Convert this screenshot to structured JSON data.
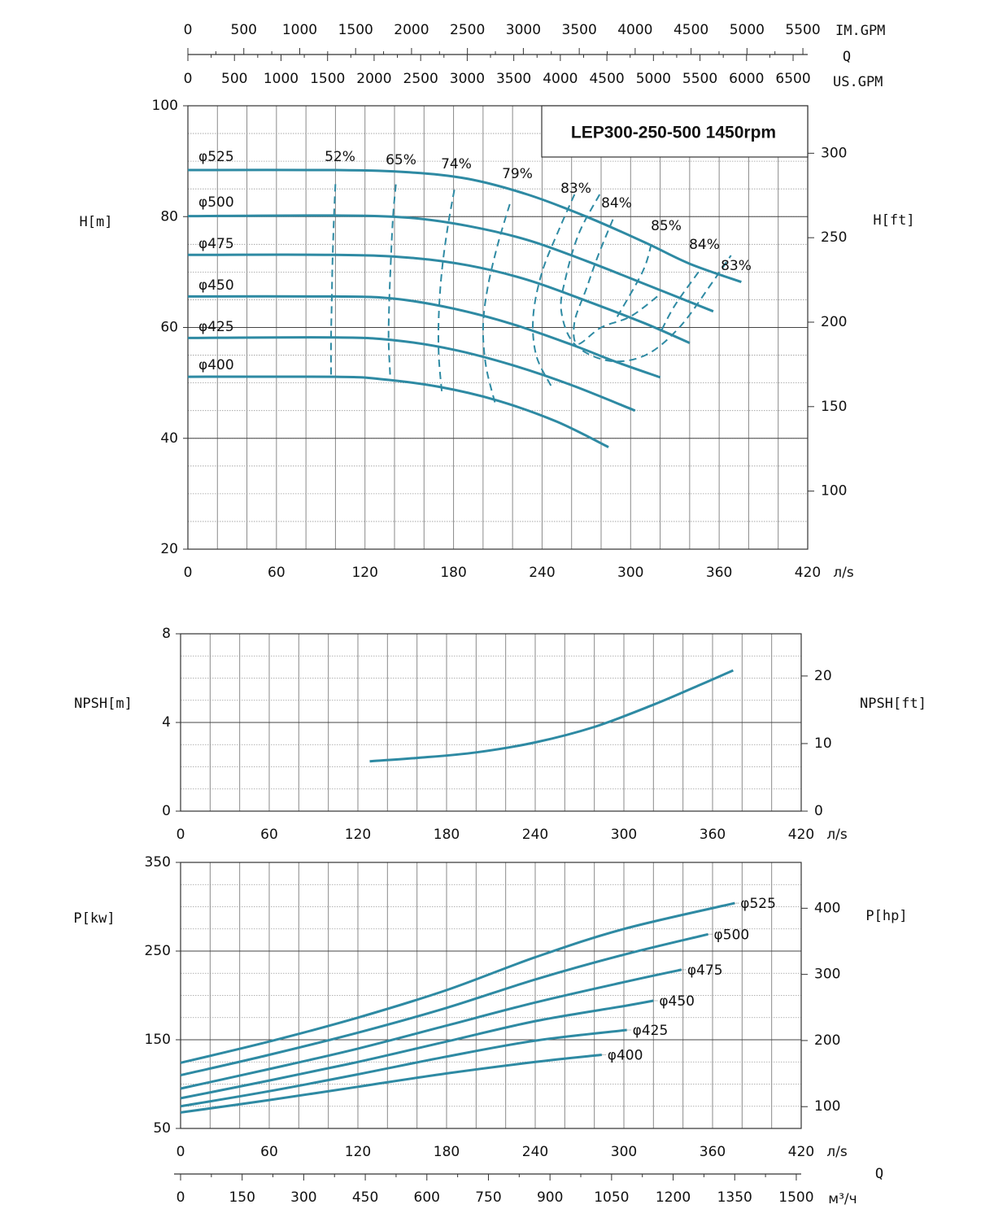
{
  "chart_data": [
    {
      "id": "head",
      "type": "line",
      "title": "LEP300-250-500 1450rpm",
      "xlabel_unit": "л/s",
      "ylabel": "H[m]",
      "ylabel_right": "H[ft]",
      "xlim": [
        0,
        420
      ],
      "ylim": [
        20,
        100
      ],
      "x_ticks": [
        0,
        60,
        120,
        180,
        240,
        300,
        360,
        420
      ],
      "y_ticks": [
        20,
        40,
        60,
        80,
        100
      ],
      "y_right_ticks": [
        100,
        150,
        200,
        250,
        300
      ],
      "y_right_factor": 3.281,
      "grid": true,
      "top_axis_imgpm": {
        "label": "IM.GPM",
        "ticks": [
          0,
          500,
          1000,
          1500,
          2000,
          2500,
          3000,
          3500,
          4000,
          4500,
          5000,
          5500
        ],
        "factor": 13.198
      },
      "top_axis_q": "Q",
      "top_axis_usgpm": {
        "label": "US.GPM",
        "ticks": [
          0,
          500,
          1000,
          1500,
          2000,
          2500,
          3000,
          3500,
          4000,
          4500,
          5000,
          5500,
          6000,
          6500
        ],
        "factor": 15.85
      },
      "series": [
        {
          "name": "φ525",
          "points": [
            [
              0,
              88.4
            ],
            [
              100,
              88.4
            ],
            [
              150,
              88
            ],
            [
              190,
              86.8
            ],
            [
              230,
              84
            ],
            [
              270,
              80
            ],
            [
              310,
              75.3
            ],
            [
              340,
              71.5
            ],
            [
              375,
              68.2
            ]
          ]
        },
        {
          "name": "φ500",
          "points": [
            [
              0,
              80.1
            ],
            [
              100,
              80.2
            ],
            [
              150,
              79.8
            ],
            [
              190,
              78.3
            ],
            [
              230,
              75.8
            ],
            [
              270,
              72
            ],
            [
              310,
              67.8
            ],
            [
              356,
              62.9
            ]
          ]
        },
        {
          "name": "φ475",
          "points": [
            [
              0,
              73.1
            ],
            [
              100,
              73.1
            ],
            [
              150,
              72.6
            ],
            [
              190,
              71.2
            ],
            [
              230,
              68.6
            ],
            [
              270,
              64.8
            ],
            [
              310,
              60.7
            ],
            [
              340,
              57.2
            ]
          ]
        },
        {
          "name": "φ450",
          "points": [
            [
              0,
              65.6
            ],
            [
              100,
              65.6
            ],
            [
              140,
              65.2
            ],
            [
              180,
              63.4
            ],
            [
              220,
              60.6
            ],
            [
              260,
              56.9
            ],
            [
              290,
              53.8
            ],
            [
              320,
              51
            ]
          ]
        },
        {
          "name": "φ425",
          "points": [
            [
              0,
              58.1
            ],
            [
              100,
              58.2
            ],
            [
              140,
              57.7
            ],
            [
              180,
              56
            ],
            [
              220,
              53.2
            ],
            [
              260,
              49.6
            ],
            [
              303,
              45
            ]
          ]
        },
        {
          "name": "φ400",
          "points": [
            [
              0,
              51.1
            ],
            [
              100,
              51.1
            ],
            [
              130,
              50.7
            ],
            [
              170,
              49.3
            ],
            [
              210,
              46.8
            ],
            [
              250,
              43
            ],
            [
              285,
              38.4
            ]
          ]
        }
      ],
      "efficiency": [
        {
          "label": "52%",
          "points": [
            [
              97,
              51.5
            ],
            [
              97,
              58
            ],
            [
              97.5,
              65
            ],
            [
              98,
              72
            ],
            [
              99,
              80
            ],
            [
              100,
              86
            ]
          ]
        },
        {
          "label": "65%",
          "points": [
            [
              137,
              51.5
            ],
            [
              136,
              58
            ],
            [
              136.5,
              65
            ],
            [
              137.5,
              72
            ],
            [
              139,
              80
            ],
            [
              141,
              86
            ]
          ]
        },
        {
          "label": "74%",
          "points": [
            [
              172,
              48.5
            ],
            [
              170,
              55
            ],
            [
              170,
              62
            ],
            [
              172,
              70
            ],
            [
              176,
              78
            ],
            [
              181,
              85.5
            ]
          ]
        },
        {
          "label": "79%",
          "points": [
            [
              208,
              46.5
            ],
            [
              202,
              53
            ],
            [
              200,
              60
            ],
            [
              203,
              67
            ],
            [
              210,
              75
            ],
            [
              219,
              83
            ]
          ]
        },
        {
          "label": "83%",
          "points": [
            [
              246,
              49.5
            ],
            [
              236,
              55
            ],
            [
              234,
              62
            ],
            [
              240,
              70
            ],
            [
              252,
              78
            ],
            [
              262,
              84
            ]
          ]
        },
        {
          "label": "83%",
          "points": [
            [
              279,
              84
            ],
            [
              265,
              77
            ],
            [
              256,
              69
            ],
            [
              253,
              63
            ],
            [
              262,
              57
            ],
            [
              285,
              54
            ],
            [
              310,
              55
            ],
            [
              333,
              60
            ],
            [
              355,
              68
            ],
            [
              368,
              73
            ]
          ]
        },
        {
          "label": "84%",
          "points": [
            [
              288,
              79.5
            ],
            [
              278,
              73
            ],
            [
              270,
              67
            ],
            [
              262,
              61
            ],
            [
              264,
              57
            ],
            [
              280,
              60
            ],
            [
              300,
              62
            ],
            [
              320,
              66
            ]
          ]
        },
        {
          "label": "85%",
          "points": [
            [
              314,
              75
            ],
            [
              308,
              70
            ],
            [
              290,
              61.5
            ]
          ]
        },
        {
          "label": "84%",
          "points": [
            [
              346,
              70
            ],
            [
              330,
              64
            ],
            [
              320,
              59
            ]
          ]
        }
      ]
    },
    {
      "id": "npsh",
      "type": "line",
      "xlabel_unit": "л/s",
      "ylabel": "NPSH[m]",
      "ylabel_right": "NPSH[ft]",
      "xlim": [
        0,
        420
      ],
      "ylim": [
        0,
        8
      ],
      "x_ticks": [
        0,
        60,
        120,
        180,
        240,
        300,
        360,
        420
      ],
      "y_ticks": [
        0,
        4,
        8
      ],
      "y_right_ticks": [
        0,
        10,
        20
      ],
      "y_right_factor": 3.281,
      "grid": true,
      "series": [
        {
          "name": "",
          "points": [
            [
              128,
              2.25
            ],
            [
              160,
              2.4
            ],
            [
              200,
              2.65
            ],
            [
              240,
              3.1
            ],
            [
              280,
              3.8
            ],
            [
              320,
              4.8
            ],
            [
              350,
              5.65
            ],
            [
              374,
              6.35
            ]
          ]
        }
      ]
    },
    {
      "id": "power",
      "type": "line",
      "xlabel_unit": "л/s",
      "ylabel": "P[kw]",
      "ylabel_right": "P[hp]",
      "xlim": [
        0,
        420
      ],
      "ylim": [
        50,
        350
      ],
      "x_ticks": [
        0,
        60,
        120,
        180,
        240,
        300,
        360,
        420
      ],
      "y_ticks": [
        50,
        150,
        250,
        350
      ],
      "y_right_ticks": [
        100,
        200,
        300,
        400
      ],
      "y_right_factor": 1.341,
      "grid": true,
      "bottom_axis_m3h": {
        "label": "м³/ч",
        "ticks": [
          0,
          150,
          300,
          450,
          600,
          750,
          900,
          1050,
          1200,
          1350,
          1500
        ],
        "factor": 3.6
      },
      "bottom_axis_q": "Q",
      "series": [
        {
          "name": "φ525",
          "points": [
            [
              0,
              124
            ],
            [
              60,
              148
            ],
            [
              120,
              175
            ],
            [
              180,
              206
            ],
            [
              240,
              243
            ],
            [
              300,
              275
            ],
            [
              375,
              304
            ]
          ]
        },
        {
          "name": "φ500",
          "points": [
            [
              0,
              110
            ],
            [
              60,
              133
            ],
            [
              120,
              158
            ],
            [
              180,
              186
            ],
            [
              240,
              218
            ],
            [
              300,
              246
            ],
            [
              357,
              269
            ]
          ]
        },
        {
          "name": "φ475",
          "points": [
            [
              0,
              95
            ],
            [
              60,
              117
            ],
            [
              120,
              140
            ],
            [
              180,
              166
            ],
            [
              240,
              192
            ],
            [
              300,
              215
            ],
            [
              339,
              229
            ]
          ]
        },
        {
          "name": "φ450",
          "points": [
            [
              0,
              84
            ],
            [
              60,
              104
            ],
            [
              120,
              125
            ],
            [
              180,
              148
            ],
            [
              240,
              171
            ],
            [
              300,
              188
            ],
            [
              320,
              194
            ]
          ]
        },
        {
          "name": "φ425",
          "points": [
            [
              0,
              75
            ],
            [
              60,
              92
            ],
            [
              120,
              111
            ],
            [
              180,
              131
            ],
            [
              240,
              149
            ],
            [
              302,
              161
            ]
          ]
        },
        {
          "name": "φ400",
          "points": [
            [
              0,
              68
            ],
            [
              60,
              82
            ],
            [
              120,
              97
            ],
            [
              180,
              112
            ],
            [
              240,
              125
            ],
            [
              285,
              133
            ]
          ]
        }
      ]
    }
  ]
}
